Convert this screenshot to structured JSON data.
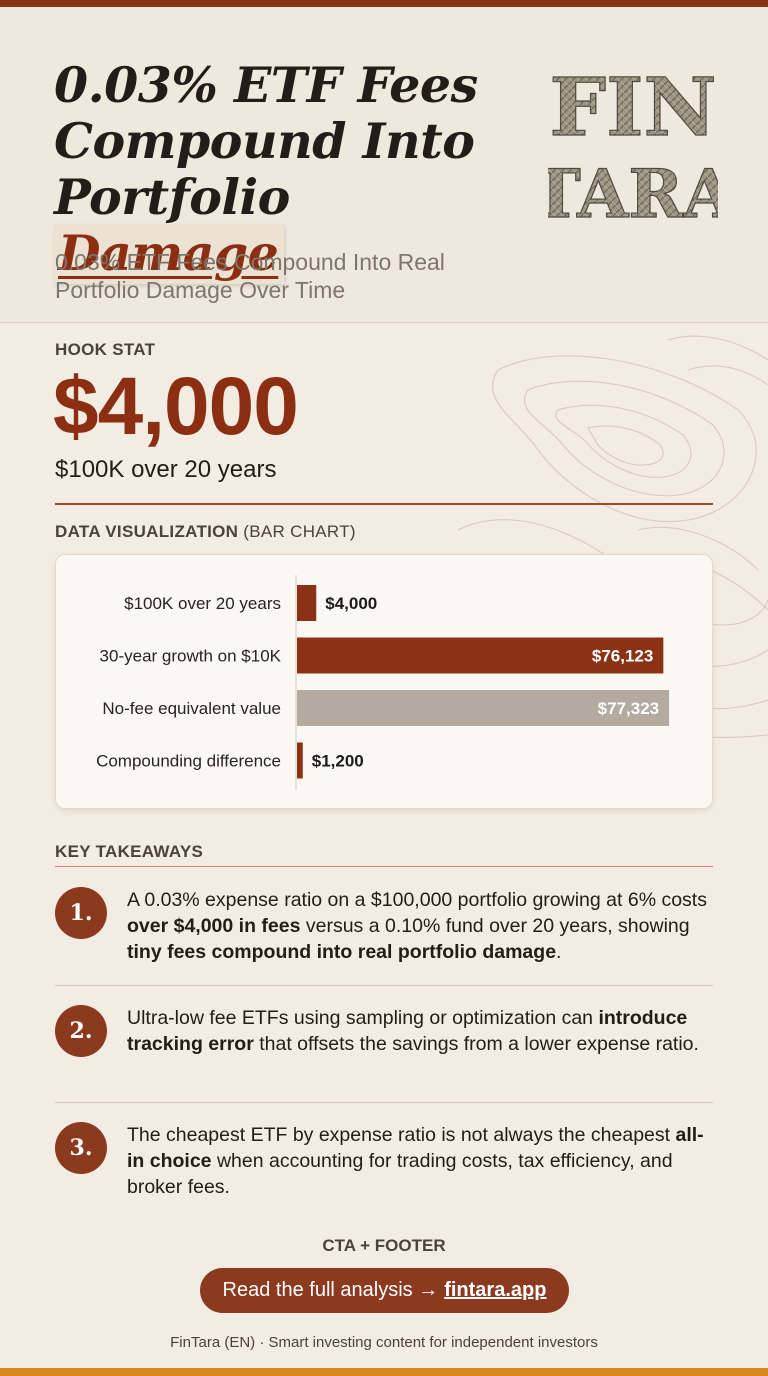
{
  "header": {
    "title_lines": [
      "0.03% ETF Fees",
      "Compound Into",
      "Portfolio"
    ],
    "title_highlight": "Damage",
    "subtitle": "0.03% ETF Fees Compound Into Real Portfolio Damage Over Time",
    "logo_top": "FIN",
    "logo_bottom": "TARA"
  },
  "hook": {
    "label": "HOOK STAT",
    "value": "$4,000",
    "caption": "$100K over 20 years"
  },
  "viz": {
    "label": "DATA VISUALIZATION",
    "label_paren": "(BAR CHART)"
  },
  "chart_data": {
    "type": "bar",
    "orientation": "horizontal",
    "categories": [
      "$100K over 20 years",
      "30-year growth on $10K",
      "No-fee equivalent value",
      "Compounding difference"
    ],
    "values": [
      4000,
      76123,
      77323,
      1200
    ],
    "value_labels": [
      "$4,000",
      "$76,123",
      "$77,323",
      "$1,200"
    ],
    "colors": [
      "#8b3216",
      "#8b3216",
      "#b3aaa0",
      "#8b3216"
    ],
    "xlim": [
      0,
      80000
    ],
    "grid": false,
    "legend": "none"
  },
  "takeaways": {
    "label": "KEY TAKEAWAYS",
    "items": [
      {
        "num": "1.",
        "parts": [
          {
            "t": "A 0.03% expense ratio on a $100,000 portfolio growing at 6% costs ",
            "b": false
          },
          {
            "t": "over $4,000 in fees",
            "b": true
          },
          {
            "t": " versus a 0.10% fund over 20 years, showing ",
            "b": false
          },
          {
            "t": "tiny fees compound into real portfolio damage",
            "b": true
          },
          {
            "t": ".",
            "b": false
          }
        ]
      },
      {
        "num": "2.",
        "parts": [
          {
            "t": "Ultra-low fee ETFs using sampling or optimization can ",
            "b": false
          },
          {
            "t": "introduce tracking error",
            "b": true
          },
          {
            "t": " that offsets the savings from a lower expense ratio.",
            "b": false
          }
        ]
      },
      {
        "num": "3.",
        "parts": [
          {
            "t": "The cheapest ETF by expense ratio is not always the cheapest ",
            "b": false
          },
          {
            "t": "all-in choice",
            "b": true
          },
          {
            "t": " when accounting for trading costs, tax efficiency, and broker fees.",
            "b": false
          }
        ]
      }
    ]
  },
  "cta": {
    "label": "CTA + FOOTER",
    "button_text": "Read the full analysis →",
    "button_link": "fintara.app"
  },
  "footer": {
    "text": "FinTara (EN) · Smart investing content for independent investors"
  },
  "colors": {
    "accent": "#8b2e12",
    "cta": "#8b3a20",
    "background": "#f2ece2",
    "neutral_bar": "#b3aaa0",
    "bottom_bar": "#d8871f"
  }
}
